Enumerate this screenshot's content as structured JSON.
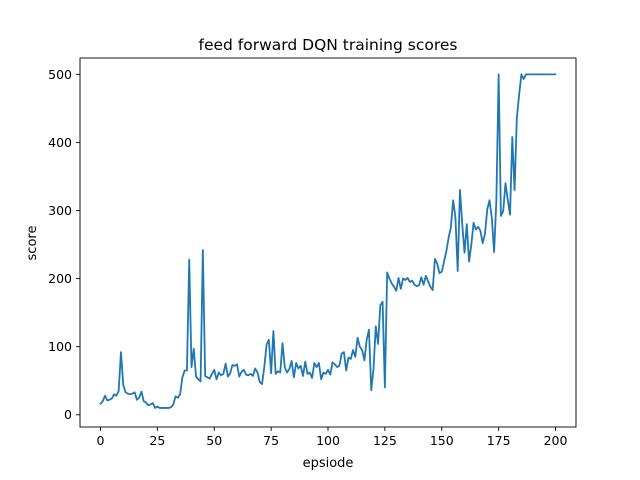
{
  "chart_data": {
    "type": "line",
    "title": "feed forward DQN training scores",
    "xlabel": "epsiode",
    "ylabel": "score",
    "xlim": [
      -9,
      209
    ],
    "ylim": [
      -18,
      524
    ],
    "x_ticks": [
      0,
      25,
      50,
      75,
      100,
      125,
      150,
      175,
      200
    ],
    "y_ticks": [
      0,
      100,
      200,
      300,
      400,
      500
    ],
    "grid": false,
    "line_color": "#1f77b4",
    "series": [
      {
        "x": [
          0,
          1,
          2,
          3,
          4,
          5,
          6,
          7,
          8,
          9,
          10,
          11,
          12,
          13,
          14,
          15,
          16,
          17,
          18,
          19,
          20,
          21,
          22,
          23,
          24,
          25,
          26,
          27,
          28,
          29,
          30,
          31,
          32,
          33,
          34,
          35,
          36,
          37,
          38,
          39,
          40,
          41,
          42,
          43,
          44,
          45,
          46,
          47,
          48,
          49,
          50,
          51,
          52,
          53,
          54,
          55,
          56,
          57,
          58,
          59,
          60,
          61,
          62,
          63,
          64,
          65,
          66,
          67,
          68,
          69,
          70,
          71,
          72,
          73,
          74,
          75,
          76,
          77,
          78,
          79,
          80,
          81,
          82,
          83,
          84,
          85,
          86,
          87,
          88,
          89,
          90,
          91,
          92,
          93,
          94,
          95,
          96,
          97,
          98,
          99,
          100,
          101,
          102,
          103,
          104,
          105,
          106,
          107,
          108,
          109,
          110,
          111,
          112,
          113,
          114,
          115,
          116,
          117,
          118,
          119,
          120,
          121,
          122,
          123,
          124,
          125,
          126,
          127,
          128,
          129,
          130,
          131,
          132,
          133,
          134,
          135,
          136,
          137,
          138,
          139,
          140,
          141,
          142,
          143,
          144,
          145,
          146,
          147,
          148,
          149,
          150,
          151,
          152,
          153,
          154,
          155,
          156,
          157,
          158,
          159,
          160,
          161,
          162,
          163,
          164,
          165,
          166,
          167,
          168,
          169,
          170,
          171,
          172,
          173,
          174,
          175,
          176,
          177,
          178,
          179,
          180,
          181,
          182,
          183,
          184,
          185,
          186,
          187,
          188,
          189,
          190,
          191,
          192,
          193,
          194,
          195,
          196,
          197,
          198,
          199,
          200
        ],
        "values": [
          16,
          20,
          28,
          21,
          22,
          24,
          30,
          28,
          35,
          92,
          44,
          33,
          31,
          30,
          31,
          33,
          22,
          25,
          34,
          20,
          18,
          14,
          15,
          17,
          10,
          12,
          10,
          10,
          10,
          10,
          10,
          11,
          15,
          27,
          25,
          30,
          55,
          65,
          65,
          228,
          70,
          97,
          56,
          52,
          49,
          242,
          57,
          55,
          53,
          60,
          66,
          52,
          62,
          58,
          60,
          75,
          56,
          61,
          73,
          72,
          74,
          56,
          63,
          66,
          59,
          58,
          60,
          57,
          68,
          62,
          48,
          45,
          70,
          103,
          110,
          61,
          123,
          60,
          64,
          62,
          105,
          70,
          62,
          67,
          79,
          55,
          76,
          68,
          72,
          57,
          78,
          60,
          62,
          54,
          76,
          70,
          76,
          52,
          62,
          60,
          66,
          59,
          77,
          74,
          70,
          72,
          90,
          92,
          65,
          84,
          82,
          95,
          85,
          113,
          100,
          95,
          80,
          110,
          125,
          36,
          67,
          130,
          104,
          161,
          166,
          40,
          209,
          200,
          193,
          188,
          182,
          201,
          185,
          200,
          198,
          201,
          195,
          197,
          191,
          189,
          190,
          202,
          191,
          204,
          196,
          188,
          183,
          229,
          222,
          208,
          210,
          225,
          240,
          260,
          275,
          315,
          290,
          211,
          330,
          280,
          238,
          280,
          225,
          250,
          282,
          272,
          276,
          270,
          252,
          266,
          302,
          315,
          289,
          239,
          315,
          500,
          292,
          299,
          340,
          316,
          294,
          408,
          330,
          436,
          470,
          500,
          493,
          500,
          500,
          500,
          500,
          500,
          500,
          500,
          500,
          500,
          500,
          500,
          500,
          500,
          500
        ]
      }
    ]
  }
}
